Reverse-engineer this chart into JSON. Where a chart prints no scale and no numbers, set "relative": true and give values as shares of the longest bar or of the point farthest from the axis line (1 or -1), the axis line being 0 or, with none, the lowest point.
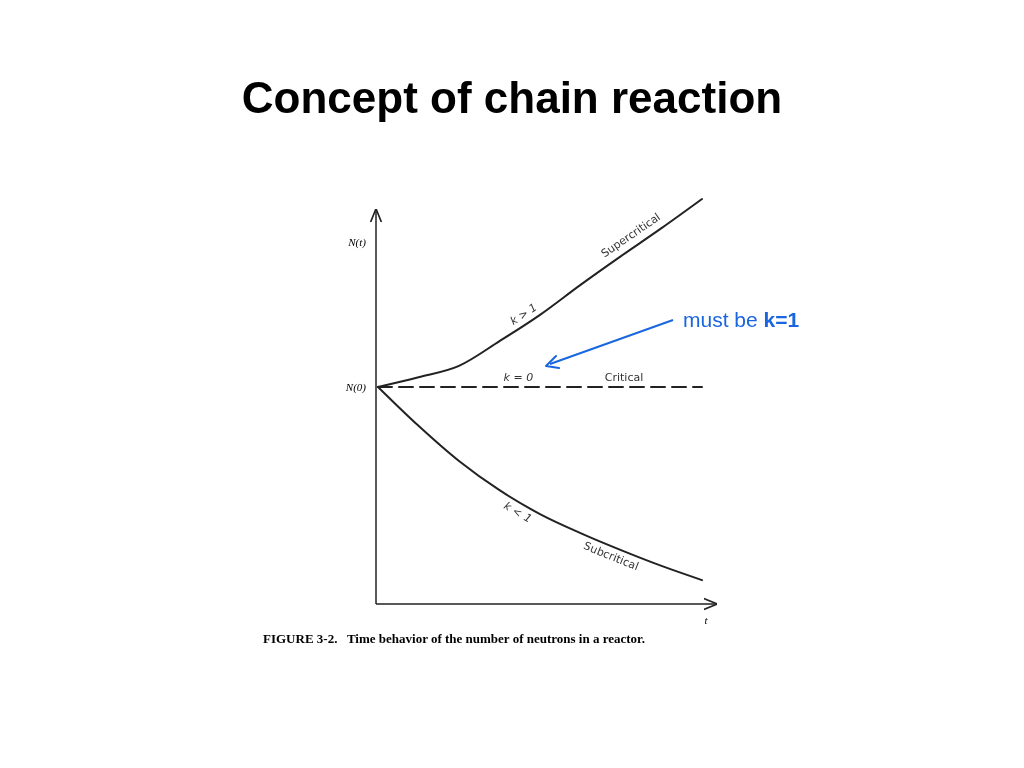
{
  "chart_data": {
    "type": "line",
    "title": "Concept of chain reaction",
    "xlabel": "t",
    "ylabel": "N(t)",
    "relative": true,
    "grid": false,
    "marker": "none",
    "categories": [
      null,
      null,
      null,
      null,
      null,
      null,
      null,
      null,
      null
    ],
    "series": [
      {
        "name": "Supercritical",
        "color": "#222222",
        "line_style": "solid",
        "values": [
          0.536,
          0.56,
          0.588,
          0.649,
          0.714,
          0.788,
          0.859,
          0.928,
          1
        ]
      },
      {
        "name": "Critical",
        "color": "#222222",
        "line_style": "dashed",
        "values": [
          0.536,
          0.536,
          0.536,
          0.536,
          0.536,
          0.536,
          0.536,
          0.536,
          0.536
        ]
      },
      {
        "name": "Subcritical",
        "color": "#222222",
        "line_style": "solid",
        "values": [
          0.536,
          0.44,
          0.353,
          0.281,
          0.222,
          0.175,
          0.133,
          0.094,
          0.059
        ]
      }
    ],
    "annotations": [
      "N(0)",
      "k > 1",
      "k = 0",
      "k < 1",
      "must be k=1",
      "FIGURE 3-2.   Time behavior of the number of neutrons in a reactor."
    ]
  }
}
